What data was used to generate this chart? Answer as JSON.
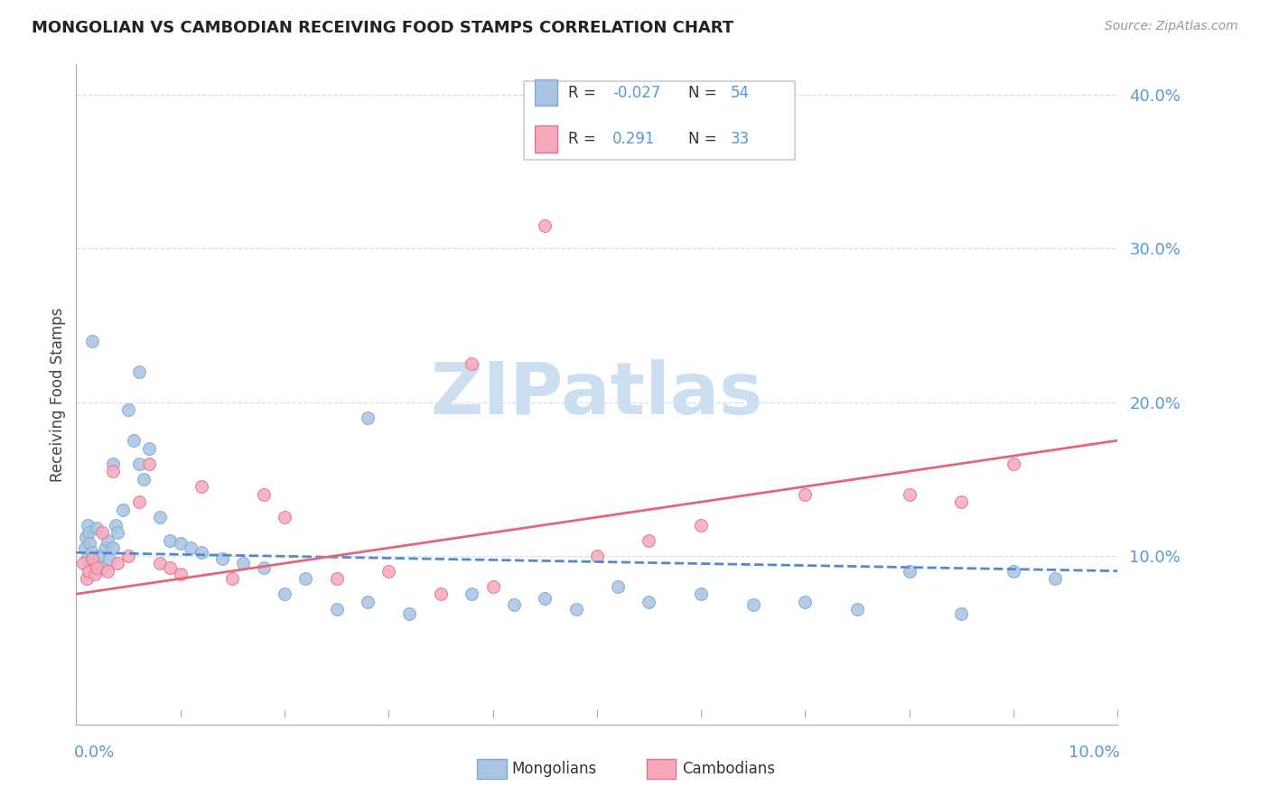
{
  "title": "MONGOLIAN VS CAMBODIAN RECEIVING FOOD STAMPS CORRELATION CHART",
  "source": "Source: ZipAtlas.com",
  "ylabel": "Receiving Food Stamps",
  "mongolian_color": "#aac4e2",
  "cambodian_color": "#f5aabb",
  "mongolian_edge": "#7aaad0",
  "cambodian_edge": "#e8708a",
  "regression_mong_color": "#5588cc",
  "regression_camb_color": "#e06878",
  "watermark_color": "#ccdff0",
  "grid_color": "#d0dff0",
  "tick_color": "#5599dd",
  "title_color": "#222222",
  "source_color": "#999999",
  "ylabel_color": "#444444",
  "xlim": [
    0,
    10
  ],
  "ylim": [
    -1,
    42
  ],
  "ytick_vals": [
    0,
    10,
    20,
    30,
    40
  ],
  "ytick_labels": [
    "",
    "10.0%",
    "20.0%",
    "30.0%",
    "40.0%"
  ],
  "mongolians_x": [
    0.08,
    0.09,
    0.1,
    0.11,
    0.12,
    0.13,
    0.15,
    0.18,
    0.2,
    0.22,
    0.25,
    0.28,
    0.3,
    0.32,
    0.35,
    0.38,
    0.4,
    0.45,
    0.5,
    0.55,
    0.6,
    0.65,
    0.7,
    0.8,
    0.9,
    1.0,
    1.1,
    1.2,
    1.4,
    1.6,
    1.8,
    2.0,
    2.2,
    2.5,
    2.8,
    3.2,
    3.8,
    4.2,
    4.5,
    4.8,
    5.2,
    5.5,
    6.0,
    6.5,
    7.0,
    7.5,
    8.0,
    8.5,
    9.0,
    9.4,
    0.35,
    2.8,
    0.15,
    0.6
  ],
  "mongolians_y": [
    10.5,
    11.2,
    9.8,
    12.0,
    11.5,
    10.8,
    10.2,
    9.5,
    11.8,
    10.0,
    9.2,
    10.5,
    11.0,
    9.8,
    10.5,
    12.0,
    11.5,
    13.0,
    19.5,
    17.5,
    16.0,
    15.0,
    17.0,
    12.5,
    11.0,
    10.8,
    10.5,
    10.2,
    9.8,
    9.5,
    9.2,
    7.5,
    8.5,
    6.5,
    7.0,
    6.2,
    7.5,
    6.8,
    7.2,
    6.5,
    8.0,
    7.0,
    7.5,
    6.8,
    7.0,
    6.5,
    9.0,
    6.2,
    9.0,
    8.5,
    16.0,
    19.0,
    24.0,
    22.0
  ],
  "cambodians_x": [
    0.07,
    0.1,
    0.12,
    0.15,
    0.18,
    0.2,
    0.25,
    0.3,
    0.35,
    0.4,
    0.5,
    0.6,
    0.7,
    0.8,
    0.9,
    1.0,
    1.2,
    1.5,
    1.8,
    2.0,
    2.5,
    3.0,
    3.5,
    4.0,
    4.5,
    5.0,
    5.5,
    6.0,
    7.0,
    8.0,
    8.5,
    9.0,
    3.8
  ],
  "cambodians_y": [
    9.5,
    8.5,
    9.0,
    9.8,
    8.8,
    9.2,
    11.5,
    9.0,
    15.5,
    9.5,
    10.0,
    13.5,
    16.0,
    9.5,
    9.2,
    8.8,
    14.5,
    8.5,
    14.0,
    12.5,
    8.5,
    9.0,
    7.5,
    8.0,
    31.5,
    10.0,
    11.0,
    12.0,
    14.0,
    14.0,
    13.5,
    16.0,
    22.5
  ],
  "mong_line_x": [
    0,
    10
  ],
  "mong_line_y": [
    10.2,
    9.0
  ],
  "camb_line_x": [
    0,
    10
  ],
  "camb_line_y": [
    7.5,
    17.5
  ]
}
